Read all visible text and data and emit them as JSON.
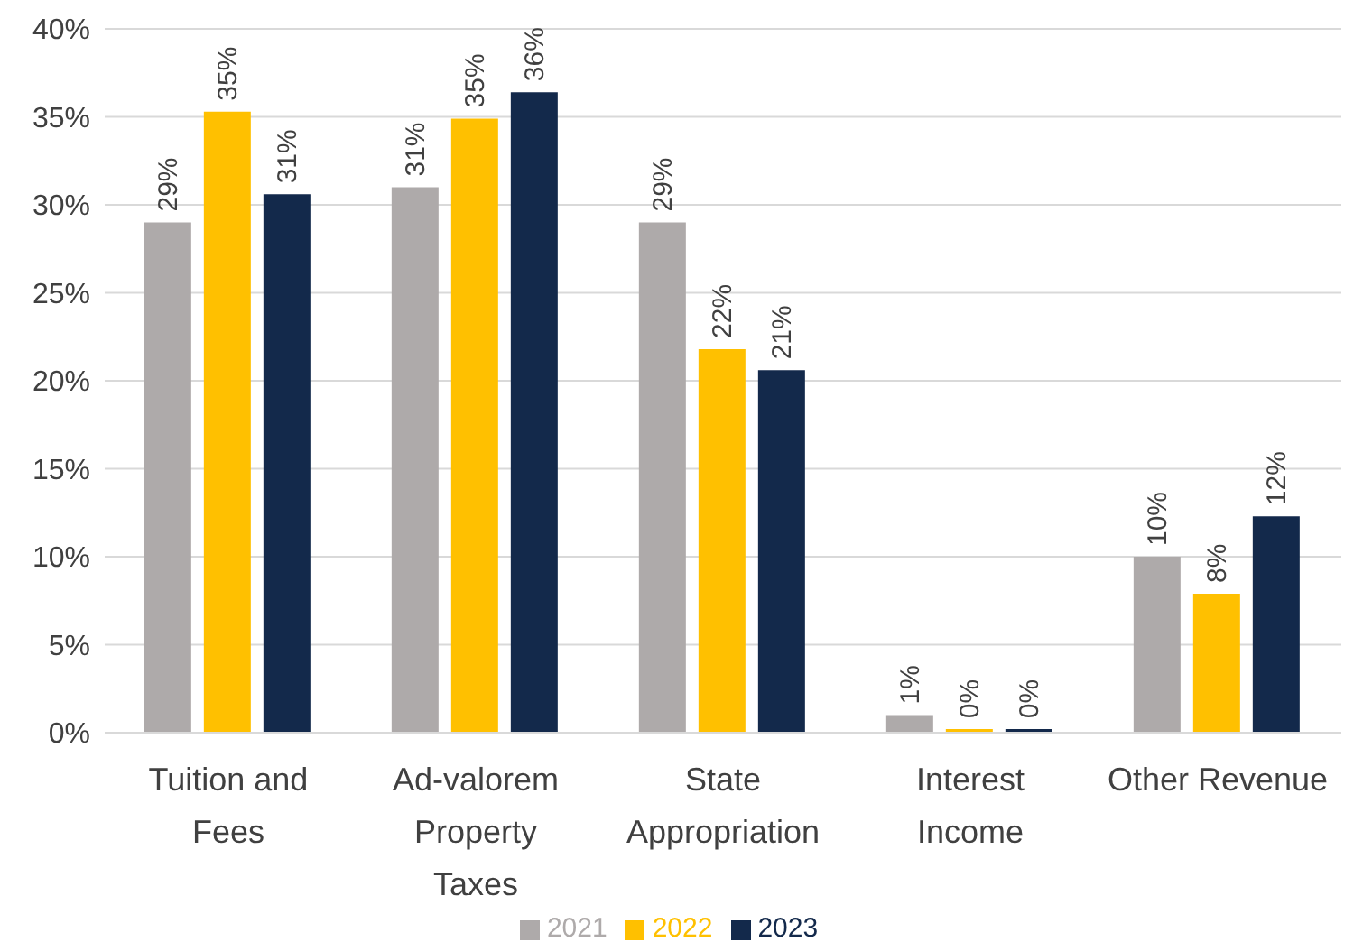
{
  "chart_data": {
    "type": "bar",
    "categories": [
      "Tuition and Fees",
      "Ad-valorem Property Taxes",
      "State Appropriation",
      "Interest Income",
      "Other Revenue"
    ],
    "series": [
      {
        "name": "2021",
        "color": "#aeaaaa",
        "values": [
          29.0,
          31.0,
          29.0,
          1.0,
          10.0
        ],
        "value_labels": [
          "29%",
          "31%",
          "29%",
          "1%",
          "10%"
        ]
      },
      {
        "name": "2022",
        "color": "#ffc000",
        "values": [
          35.3,
          34.9,
          21.8,
          0.2,
          7.9
        ],
        "value_labels": [
          "35%",
          "35%",
          "22%",
          "0%",
          "8%"
        ]
      },
      {
        "name": "2023",
        "color": "#13294b",
        "values": [
          30.6,
          36.4,
          20.6,
          0.2,
          12.3
        ],
        "value_labels": [
          "31%",
          "36%",
          "21%",
          "0%",
          "12%"
        ]
      }
    ],
    "ylim": [
      0,
      40
    ],
    "yticks": [
      {
        "value": 0,
        "label": "0%"
      },
      {
        "value": 5,
        "label": "5%"
      },
      {
        "value": 10,
        "label": "10%"
      },
      {
        "value": 15,
        "label": "15%"
      },
      {
        "value": 20,
        "label": "20%"
      },
      {
        "value": 25,
        "label": "25%"
      },
      {
        "value": 30,
        "label": "30%"
      },
      {
        "value": 35,
        "label": "35%"
      },
      {
        "value": 40,
        "label": "40%"
      }
    ],
    "grid": "y",
    "legend": "bottom"
  }
}
